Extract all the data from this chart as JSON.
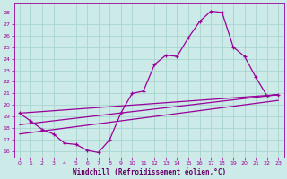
{
  "bg_color": "#cceae7",
  "line_color": "#990099",
  "grid_color": "#aad4d0",
  "xlabel": "Windchill (Refroidissement éolien,°C)",
  "xlabel_color": "#660066",
  "ylabel_yticks": [
    16,
    17,
    18,
    19,
    20,
    21,
    22,
    23,
    24,
    25,
    26,
    27,
    28
  ],
  "xticks": [
    0,
    1,
    2,
    3,
    4,
    5,
    6,
    7,
    8,
    9,
    10,
    11,
    12,
    13,
    14,
    15,
    16,
    17,
    18,
    19,
    20,
    21,
    22,
    23
  ],
  "ylim": [
    15.5,
    28.8
  ],
  "xlim": [
    -0.5,
    23.5
  ],
  "series1_x": [
    0,
    1,
    2,
    3,
    4,
    5,
    6,
    7,
    8,
    9,
    10,
    11,
    12,
    13,
    14,
    15,
    16,
    17,
    18,
    19,
    20,
    21,
    22,
    23
  ],
  "series1_y": [
    19.3,
    18.6,
    17.9,
    17.5,
    16.7,
    16.6,
    16.1,
    15.9,
    17.0,
    19.3,
    21.0,
    21.2,
    23.5,
    24.3,
    24.2,
    25.8,
    27.2,
    28.1,
    28.0,
    25.0,
    24.2,
    22.4,
    20.8,
    20.9
  ],
  "line2_x": [
    0,
    23
  ],
  "line2_y": [
    19.3,
    20.9
  ],
  "line3_x": [
    0,
    23
  ],
  "line3_y": [
    18.3,
    20.9
  ],
  "line4_x": [
    0,
    23
  ],
  "line4_y": [
    17.5,
    20.4
  ]
}
